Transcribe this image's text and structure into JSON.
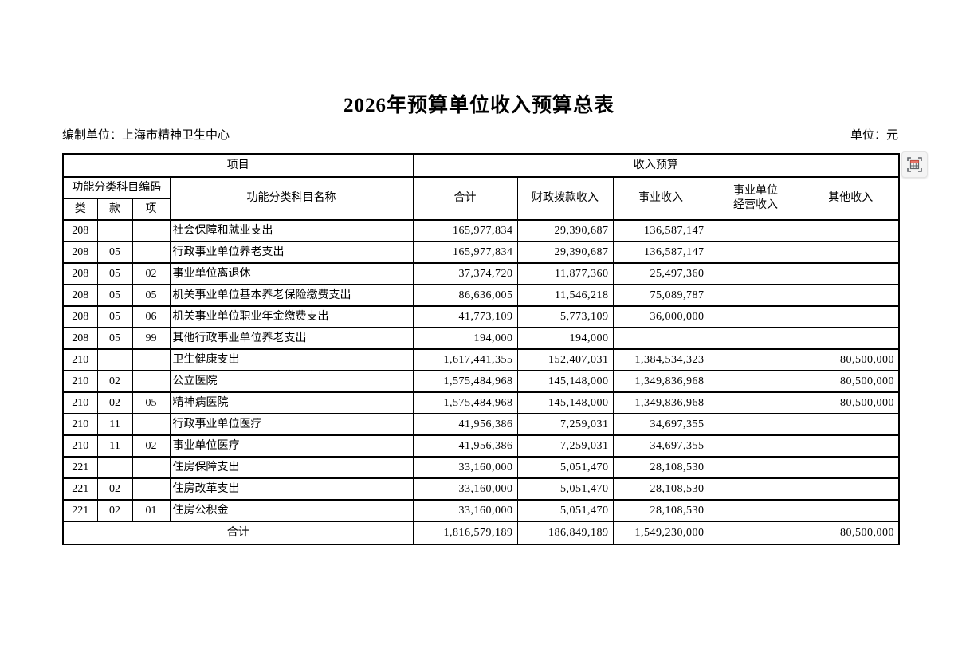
{
  "page": {
    "title": "2026年预算单位收入预算总表",
    "prepared_by": "编制单位：上海市精神卫生中心",
    "unit_note": "单位：元"
  },
  "colors": {
    "border": "#000000",
    "background": "#ffffff",
    "capture_icon_accent": "#e8756a",
    "capture_icon_gray": "#5f6368"
  },
  "table": {
    "header": {
      "project": "项目",
      "income_budget": "收入预算",
      "code_group": "功能分类科目编码",
      "code_lei": "类",
      "code_kuan": "款",
      "code_xiang": "项",
      "name": "功能分类科目名称",
      "total": "合计",
      "fiscal": "财政拨款收入",
      "business": "事业收入",
      "operating_line1": "事业单位",
      "operating_line2": "经营收入",
      "other": "其他收入"
    },
    "rows": [
      {
        "lei": "208",
        "kuan": "",
        "xiang": "",
        "name": "社会保障和就业支出",
        "total": "165,977,834",
        "fiscal": "29,390,687",
        "business": "136,587,147",
        "operating": "",
        "other": ""
      },
      {
        "lei": "208",
        "kuan": "05",
        "xiang": "",
        "name": "行政事业单位养老支出",
        "total": "165,977,834",
        "fiscal": "29,390,687",
        "business": "136,587,147",
        "operating": "",
        "other": ""
      },
      {
        "lei": "208",
        "kuan": "05",
        "xiang": "02",
        "name": "事业单位离退休",
        "total": "37,374,720",
        "fiscal": "11,877,360",
        "business": "25,497,360",
        "operating": "",
        "other": ""
      },
      {
        "lei": "208",
        "kuan": "05",
        "xiang": "05",
        "name": "机关事业单位基本养老保险缴费支出",
        "total": "86,636,005",
        "fiscal": "11,546,218",
        "business": "75,089,787",
        "operating": "",
        "other": ""
      },
      {
        "lei": "208",
        "kuan": "05",
        "xiang": "06",
        "name": "机关事业单位职业年金缴费支出",
        "total": "41,773,109",
        "fiscal": "5,773,109",
        "business": "36,000,000",
        "operating": "",
        "other": ""
      },
      {
        "lei": "208",
        "kuan": "05",
        "xiang": "99",
        "name": "其他行政事业单位养老支出",
        "total": "194,000",
        "fiscal": "194,000",
        "business": "",
        "operating": "",
        "other": ""
      },
      {
        "lei": "210",
        "kuan": "",
        "xiang": "",
        "name": "卫生健康支出",
        "total": "1,617,441,355",
        "fiscal": "152,407,031",
        "business": "1,384,534,323",
        "operating": "",
        "other": "80,500,000"
      },
      {
        "lei": "210",
        "kuan": "02",
        "xiang": "",
        "name": "公立医院",
        "total": "1,575,484,968",
        "fiscal": "145,148,000",
        "business": "1,349,836,968",
        "operating": "",
        "other": "80,500,000"
      },
      {
        "lei": "210",
        "kuan": "02",
        "xiang": "05",
        "name": "精神病医院",
        "total": "1,575,484,968",
        "fiscal": "145,148,000",
        "business": "1,349,836,968",
        "operating": "",
        "other": "80,500,000"
      },
      {
        "lei": "210",
        "kuan": "11",
        "xiang": "",
        "name": "行政事业单位医疗",
        "total": "41,956,386",
        "fiscal": "7,259,031",
        "business": "34,697,355",
        "operating": "",
        "other": ""
      },
      {
        "lei": "210",
        "kuan": "11",
        "xiang": "02",
        "name": "事业单位医疗",
        "total": "41,956,386",
        "fiscal": "7,259,031",
        "business": "34,697,355",
        "operating": "",
        "other": ""
      },
      {
        "lei": "221",
        "kuan": "",
        "xiang": "",
        "name": "住房保障支出",
        "total": "33,160,000",
        "fiscal": "5,051,470",
        "business": "28,108,530",
        "operating": "",
        "other": ""
      },
      {
        "lei": "221",
        "kuan": "02",
        "xiang": "",
        "name": "住房改革支出",
        "total": "33,160,000",
        "fiscal": "5,051,470",
        "business": "28,108,530",
        "operating": "",
        "other": ""
      },
      {
        "lei": "221",
        "kuan": "02",
        "xiang": "01",
        "name": "住房公积金",
        "total": "33,160,000",
        "fiscal": "5,051,470",
        "business": "28,108,530",
        "operating": "",
        "other": ""
      }
    ],
    "total_row": {
      "label": "合计",
      "total": "1,816,579,189",
      "fiscal": "186,849,189",
      "business": "1,549,230,000",
      "operating": "",
      "other": "80,500,000"
    }
  }
}
